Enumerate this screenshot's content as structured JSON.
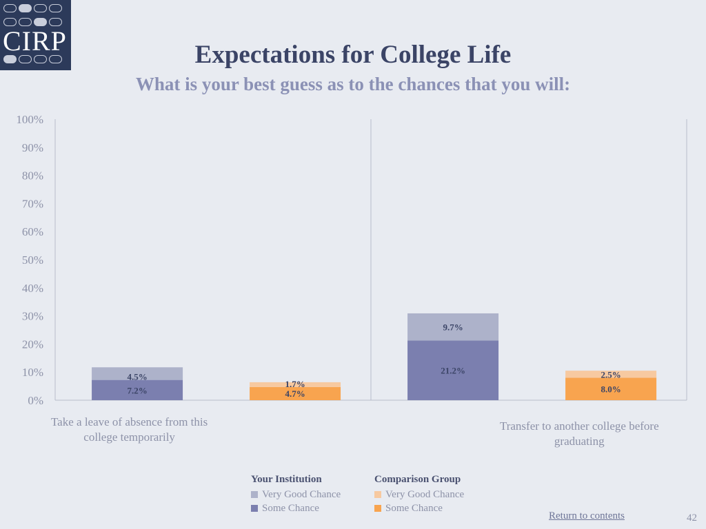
{
  "logo": {
    "text": "CIRP"
  },
  "title": "Expectations for College Life",
  "subtitle": "What is your best guess as to the chances that you will:",
  "chart_data": {
    "type": "bar",
    "stacked": true,
    "ylim": [
      0,
      100
    ],
    "yticks": [
      "0%",
      "10%",
      "20%",
      "30%",
      "40%",
      "50%",
      "60%",
      "70%",
      "80%",
      "90%",
      "100%"
    ],
    "categories": [
      "Take a leave of absence from this college temporarily",
      "Transfer to another college before graduating"
    ],
    "category_lines": [
      [
        "Take a leave of absence from this",
        "college temporarily"
      ],
      [
        "Transfer to another college before",
        "graduating"
      ]
    ],
    "groups": [
      {
        "name": "Your Institution",
        "series": [
          {
            "name": "Some Chance",
            "values": [
              7.2,
              21.2
            ],
            "labels": [
              "7.2%",
              "21.2%"
            ],
            "color": "#7b7faf"
          },
          {
            "name": "Very Good Chance",
            "values": [
              4.5,
              9.7
            ],
            "labels": [
              "4.5%",
              "9.7%"
            ],
            "color": "#adb2ca"
          }
        ]
      },
      {
        "name": "Comparison Group",
        "series": [
          {
            "name": "Some Chance",
            "values": [
              4.7,
              8.0
            ],
            "labels": [
              "4.7%",
              "8.0%"
            ],
            "color": "#f8a44f"
          },
          {
            "name": "Very Good Chance",
            "values": [
              1.7,
              2.5
            ],
            "labels": [
              "1.7%",
              "2.5%"
            ],
            "color": "#f7c9a0"
          }
        ]
      }
    ],
    "legend": [
      {
        "heading": "Your Institution",
        "items": [
          {
            "label": "Very Good Chance",
            "color": "#adb2ca"
          },
          {
            "label": "Some Chance",
            "color": "#7b7faf"
          }
        ]
      },
      {
        "heading": "Comparison Group",
        "items": [
          {
            "label": "Very Good Chance",
            "color": "#f7c9a0"
          },
          {
            "label": "Some Chance",
            "color": "#f8a44f"
          }
        ]
      }
    ],
    "legend_position": "bottom",
    "grid": false
  },
  "footer": {
    "return_link": "Return to contents",
    "page_number": "42"
  }
}
